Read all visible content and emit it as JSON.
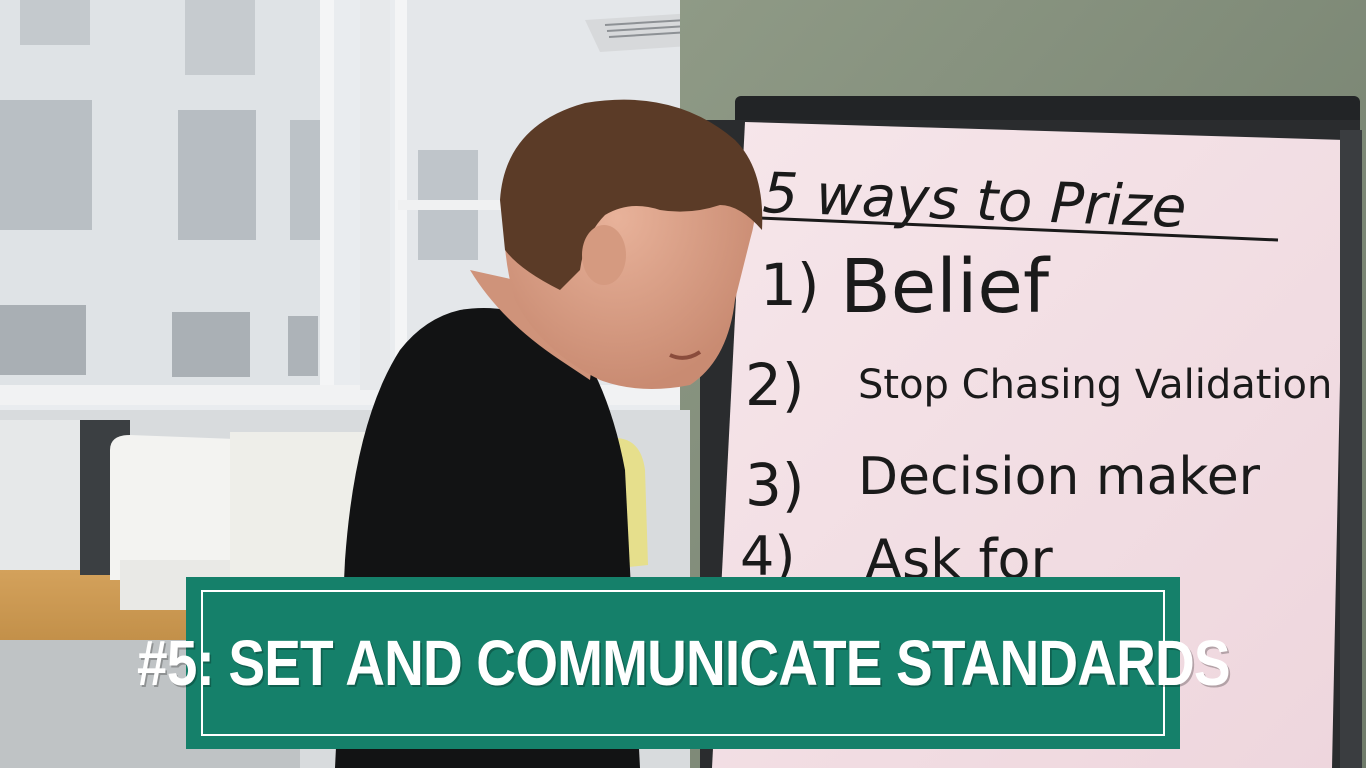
{
  "video_frame": {
    "whiteboard": {
      "title": "5 ways to Prize",
      "items": [
        {
          "number": "1)",
          "text": "Belief"
        },
        {
          "number": "2)",
          "text": "Stop Chasing Validation"
        },
        {
          "number": "3)",
          "text": "Decision maker"
        },
        {
          "number": "4)",
          "text": "Ask for"
        }
      ]
    },
    "caption": {
      "text": "#5: SET AND COMMUNICATE STANDARDS",
      "background_color": "#15806a",
      "text_color": "#ffffff"
    }
  }
}
